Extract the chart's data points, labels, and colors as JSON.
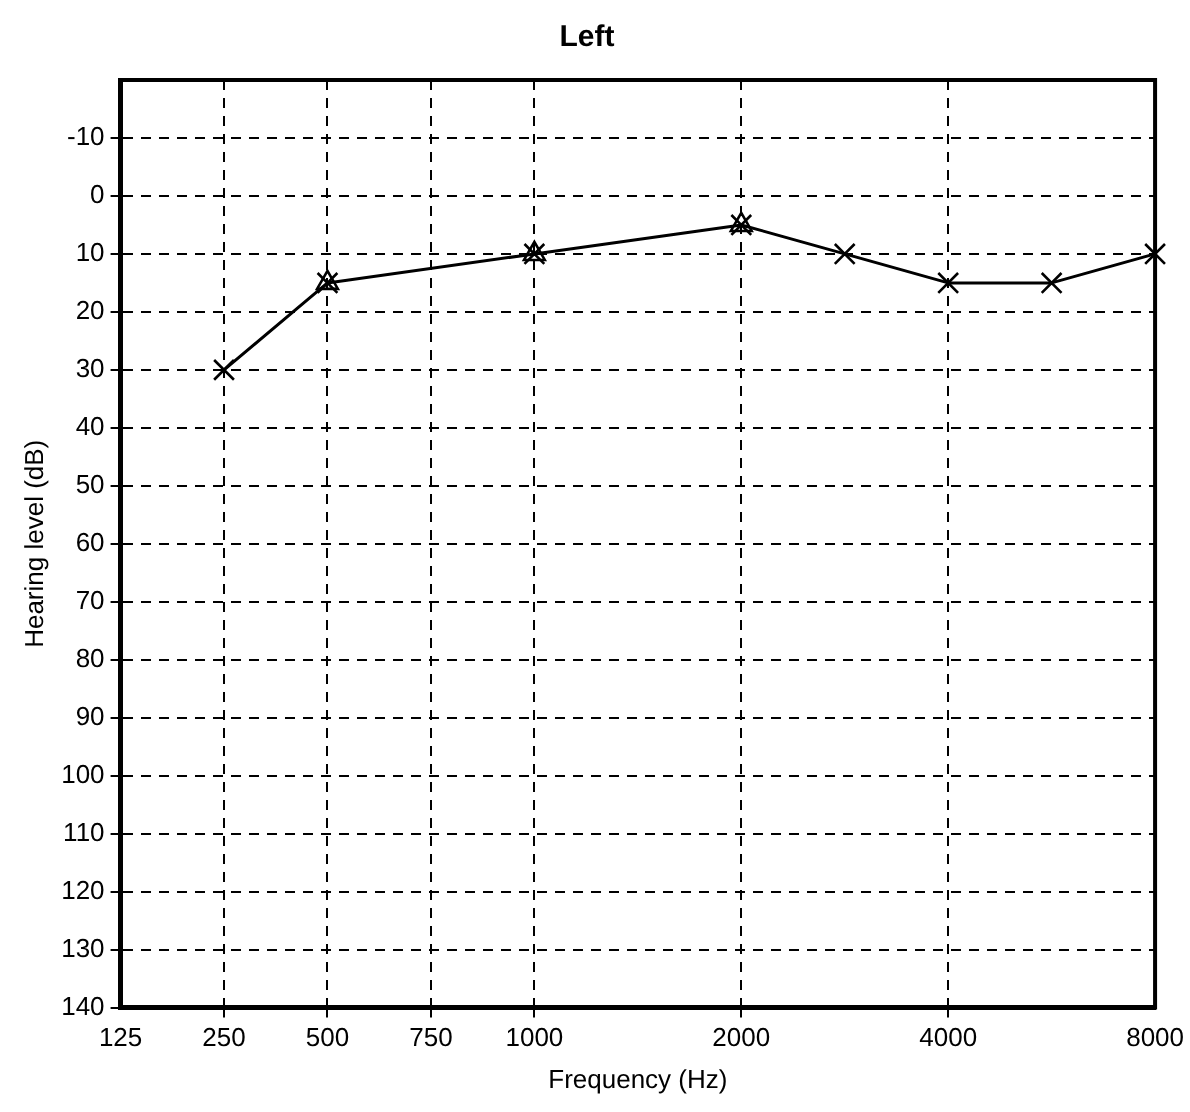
{
  "chart_data": {
    "type": "line",
    "title": "Left",
    "xlabel": "Frequency (Hz)",
    "ylabel": "Hearing level (dB)",
    "categories": [
      "125",
      "250",
      "500",
      "750",
      "1000",
      null,
      "2000",
      null,
      "4000",
      null,
      "8000"
    ],
    "series": [
      {
        "color": "#000000",
        "marker": "cross",
        "values": [
          null,
          30,
          15,
          null,
          10,
          null,
          5,
          10,
          15,
          15,
          10
        ]
      },
      {
        "type": "scatter",
        "color": "#000000",
        "marker": "triangle",
        "values": [
          null,
          null,
          15,
          null,
          10,
          null,
          5,
          null,
          null,
          null,
          null
        ]
      }
    ],
    "ylim": [
      140,
      -20
    ],
    "yticks": [
      -10,
      0,
      10,
      20,
      30,
      40,
      50,
      60,
      70,
      80,
      90,
      100,
      110,
      120,
      130,
      140
    ],
    "grid": true,
    "line_style": "solid",
    "legend": false
  }
}
